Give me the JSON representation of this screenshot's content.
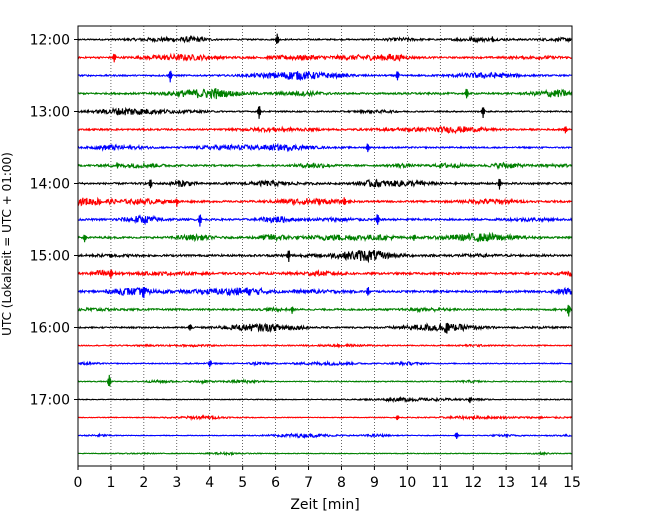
{
  "chart_data": {
    "type": "line",
    "title": "",
    "xlabel": "Zeit  [min]",
    "ylabel": "UTC (Lokalzeit = UTC + 01:00)",
    "xlim": [
      0,
      15
    ],
    "x_ticks": [
      "0",
      "1",
      "2",
      "3",
      "4",
      "5",
      "6",
      "7",
      "8",
      "9",
      "10",
      "11",
      "12",
      "13",
      "14",
      "15"
    ],
    "y_tick_labels": [
      "12:00",
      "13:00",
      "14:00",
      "15:00",
      "16:00",
      "17:00"
    ],
    "grid": {
      "x": "dotted",
      "y": false
    },
    "trace_colors": [
      "#000000",
      "#ff0000",
      "#0000ff",
      "#008000"
    ],
    "traces": [
      {
        "start": "12:00",
        "color": "#000000",
        "amplitude": 0.35,
        "spikes": [
          {
            "x": 6.05,
            "a": 0.8
          },
          {
            "x": 12.6,
            "a": 0.4
          }
        ]
      },
      {
        "start": "12:15",
        "color": "#ff0000",
        "amplitude": 0.45,
        "spikes": [
          {
            "x": 1.1,
            "a": 0.7
          }
        ]
      },
      {
        "start": "12:30",
        "color": "#0000ff",
        "amplitude": 0.4,
        "spikes": [
          {
            "x": 2.8,
            "a": 0.9
          },
          {
            "x": 9.7,
            "a": 0.8
          }
        ]
      },
      {
        "start": "12:45",
        "color": "#008000",
        "amplitude": 0.45,
        "spikes": [
          {
            "x": 4.2,
            "a": 0.8
          },
          {
            "x": 11.8,
            "a": 0.8
          }
        ]
      },
      {
        "start": "13:00",
        "color": "#000000",
        "amplitude": 0.35,
        "spikes": [
          {
            "x": 5.5,
            "a": 1.0
          },
          {
            "x": 12.3,
            "a": 0.9
          }
        ]
      },
      {
        "start": "13:15",
        "color": "#ff0000",
        "amplitude": 0.45,
        "spikes": [
          {
            "x": 14.8,
            "a": 0.6
          }
        ]
      },
      {
        "start": "13:30",
        "color": "#0000ff",
        "amplitude": 0.4,
        "spikes": [
          {
            "x": 8.8,
            "a": 0.7
          }
        ]
      },
      {
        "start": "13:45",
        "color": "#008000",
        "amplitude": 0.45,
        "spikes": [
          {
            "x": 1.2,
            "a": 0.5
          }
        ]
      },
      {
        "start": "14:00",
        "color": "#000000",
        "amplitude": 0.5,
        "spikes": [
          {
            "x": 2.2,
            "a": 0.8
          },
          {
            "x": 12.8,
            "a": 0.8
          }
        ]
      },
      {
        "start": "14:15",
        "color": "#ff0000",
        "amplitude": 0.5,
        "spikes": [
          {
            "x": 3.0,
            "a": 0.6
          },
          {
            "x": 8.1,
            "a": 0.7
          }
        ]
      },
      {
        "start": "14:30",
        "color": "#0000ff",
        "amplitude": 0.5,
        "spikes": [
          {
            "x": 3.7,
            "a": 0.9
          },
          {
            "x": 9.1,
            "a": 0.9
          }
        ]
      },
      {
        "start": "14:45",
        "color": "#008000",
        "amplitude": 0.5,
        "spikes": [
          {
            "x": 0.2,
            "a": 0.6
          },
          {
            "x": 10.2,
            "a": 0.6
          }
        ]
      },
      {
        "start": "15:00",
        "color": "#000000",
        "amplitude": 0.55,
        "spikes": [
          {
            "x": 6.4,
            "a": 0.8
          },
          {
            "x": 1.0,
            "a": 0.5
          }
        ]
      },
      {
        "start": "15:15",
        "color": "#ff0000",
        "amplitude": 0.55,
        "spikes": [
          {
            "x": 1.0,
            "a": 0.7
          }
        ]
      },
      {
        "start": "15:30",
        "color": "#0000ff",
        "amplitude": 0.55,
        "spikes": [
          {
            "x": 2.0,
            "a": 1.0
          },
          {
            "x": 8.8,
            "a": 0.7
          }
        ]
      },
      {
        "start": "15:45",
        "color": "#008000",
        "amplitude": 0.45,
        "spikes": [
          {
            "x": 14.9,
            "a": 0.9
          },
          {
            "x": 6.5,
            "a": 0.5
          }
        ]
      },
      {
        "start": "16:00",
        "color": "#000000",
        "amplitude": 0.4,
        "spikes": [
          {
            "x": 11.2,
            "a": 0.9
          },
          {
            "x": 3.4,
            "a": 0.5
          }
        ]
      },
      {
        "start": "16:15",
        "color": "#ff0000",
        "amplitude": 0.25,
        "spikes": []
      },
      {
        "start": "16:30",
        "color": "#0000ff",
        "amplitude": 0.25,
        "spikes": [
          {
            "x": 4.0,
            "a": 0.5
          }
        ]
      },
      {
        "start": "16:45",
        "color": "#008000",
        "amplitude": 0.25,
        "spikes": [
          {
            "x": 0.95,
            "a": 0.9
          }
        ]
      },
      {
        "start": "17:00",
        "color": "#000000",
        "amplitude": 0.2,
        "spikes": [
          {
            "x": 11.9,
            "a": 0.5
          }
        ]
      },
      {
        "start": "17:15",
        "color": "#ff0000",
        "amplitude": 0.2,
        "spikes": [
          {
            "x": 9.7,
            "a": 0.4
          }
        ]
      },
      {
        "start": "17:30",
        "color": "#0000ff",
        "amplitude": 0.2,
        "spikes": [
          {
            "x": 11.5,
            "a": 0.5
          }
        ]
      },
      {
        "start": "17:45",
        "color": "#008000",
        "amplitude": 0.2,
        "spikes": []
      }
    ]
  }
}
